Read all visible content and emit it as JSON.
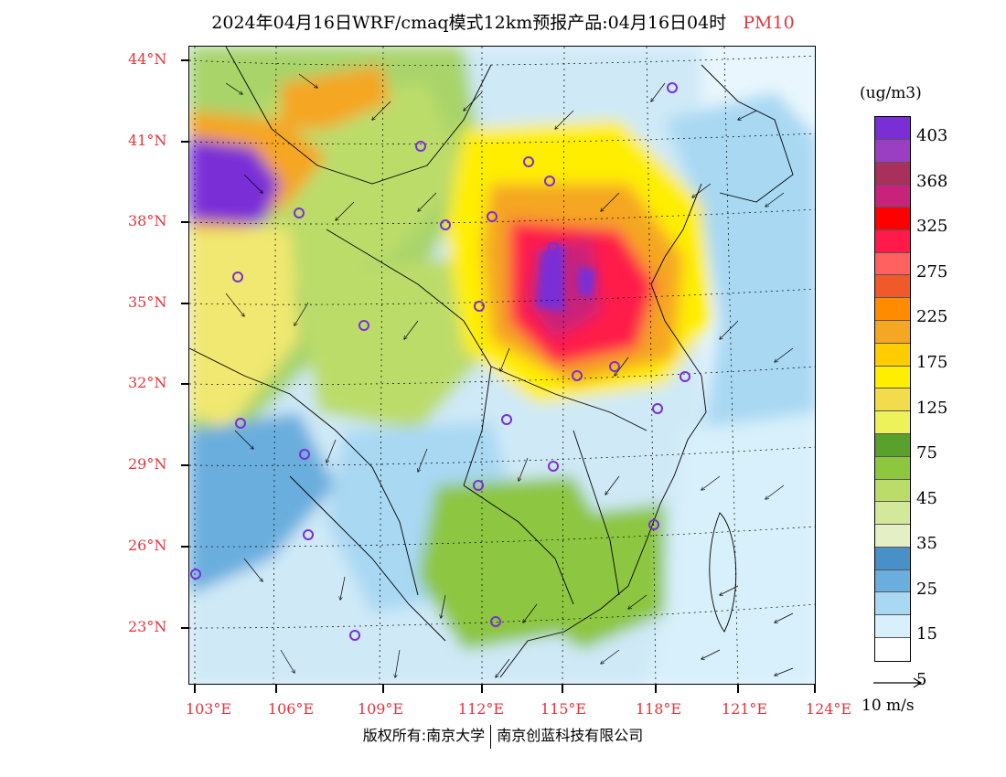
{
  "title": {
    "main": "2024年04月16日WRF/cmaq模式12km预报产品:04月16日04时",
    "variable": "PM10"
  },
  "axes": {
    "lat_labels": [
      "44°N",
      "41°N",
      "38°N",
      "35°N",
      "32°N",
      "29°N",
      "26°N",
      "23°N"
    ],
    "lon_labels": [
      "103°E",
      "106°E",
      "109°E",
      "112°E",
      "115°E",
      "118°E",
      "121°E",
      "124°E"
    ]
  },
  "colorbar": {
    "unit": "(ug/m3)",
    "labels": [
      "403",
      "368",
      "325",
      "275",
      "225",
      "175",
      "125",
      "75",
      "45",
      "35",
      "25",
      "15",
      "5"
    ],
    "colors": [
      "#7a2fd6",
      "#9a3fc2",
      "#a8305a",
      "#c8237a",
      "#ff0000",
      "#ff1a4a",
      "#ff6060",
      "#f05a2a",
      "#ff8c00",
      "#f5a623",
      "#ffcd00",
      "#ffee00",
      "#f3dc4b",
      "#eef25a",
      "#5aa02c",
      "#8dc63f",
      "#bcdc6a",
      "#d4e89a",
      "#e4efc5",
      "#4a90c8",
      "#6aaede",
      "#a9d8f3",
      "#d8f0fb",
      "#ffffff"
    ]
  },
  "wind_legend": {
    "label": "10 m/s"
  },
  "copyright": {
    "left": "版权所有:南京大学",
    "right": "南京创蓝科技有限公司"
  },
  "colors": {
    "accent_red": "#e8333a",
    "station_marker": "#7a2fd6"
  }
}
